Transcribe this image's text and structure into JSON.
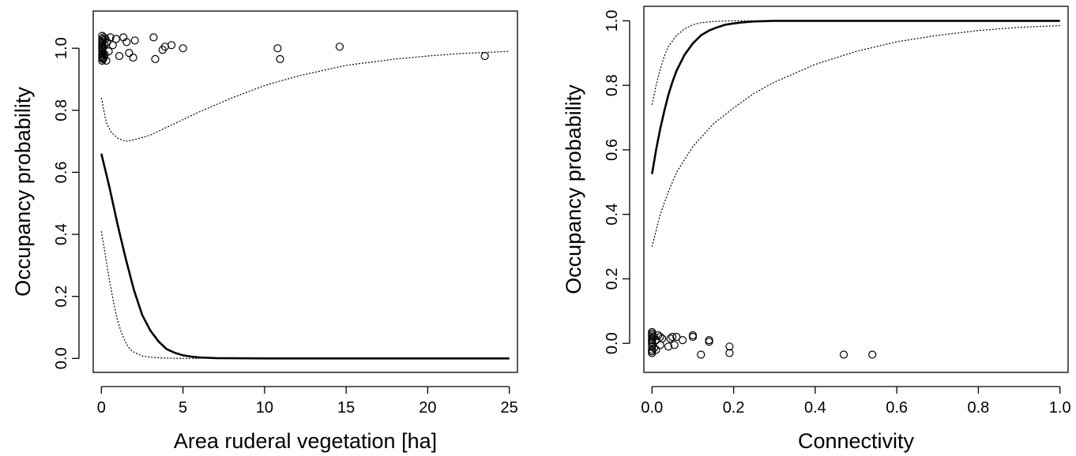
{
  "chart_data": [
    {
      "type": "scatter",
      "xlabel": "Area ruderal vegetation [ha]",
      "ylabel": "Occupancy probability",
      "xlim": [
        -0.5,
        25.5
      ],
      "ylim": [
        -0.045,
        1.12
      ],
      "x_ticks": [
        0,
        5,
        10,
        15,
        20,
        25
      ],
      "y_ticks": [
        0.0,
        0.2,
        0.4,
        0.6,
        0.8,
        1.0
      ],
      "x_tick_labels": [
        "0",
        "5",
        "10",
        "15",
        "20",
        "25"
      ],
      "y_tick_labels": [
        "0.0",
        "0.2",
        "0.4",
        "0.6",
        "0.8",
        "1.0"
      ],
      "grid": false,
      "series": [
        {
          "style": "solid",
          "x": [
            0,
            0.5,
            1,
            1.5,
            2,
            2.5,
            3,
            3.5,
            4,
            4.5,
            5,
            5.5,
            6,
            6.5,
            7,
            10,
            15,
            20,
            25
          ],
          "y": [
            0.66,
            0.55,
            0.43,
            0.32,
            0.22,
            0.14,
            0.09,
            0.055,
            0.03,
            0.018,
            0.01,
            0.006,
            0.003,
            0.002,
            0.001,
            0.0,
            0.0,
            0.0,
            0.0
          ]
        },
        {
          "style": "dotted",
          "x": [
            0,
            0.25,
            0.5,
            0.75,
            1,
            1.25,
            1.5,
            1.75,
            2,
            2.5,
            3,
            3.5,
            4,
            5,
            6
          ],
          "y": [
            0.41,
            0.33,
            0.25,
            0.18,
            0.12,
            0.08,
            0.05,
            0.03,
            0.02,
            0.008,
            0.004,
            0.002,
            0.001,
            0.0,
            0.0
          ]
        },
        {
          "style": "dotted",
          "x": [
            0,
            0.3,
            0.6,
            1,
            1.5,
            2,
            3,
            4,
            5,
            6,
            8,
            10,
            12,
            15,
            18,
            20,
            22,
            25
          ],
          "y": [
            0.84,
            0.76,
            0.73,
            0.71,
            0.7,
            0.705,
            0.72,
            0.745,
            0.77,
            0.795,
            0.84,
            0.88,
            0.91,
            0.945,
            0.965,
            0.975,
            0.983,
            0.99
          ]
        }
      ],
      "points": {
        "x": [
          0.05,
          0.05,
          0.05,
          0.05,
          0.05,
          0.05,
          0.05,
          0.05,
          0.05,
          0.05,
          0.05,
          0.05,
          0.05,
          0.1,
          0.1,
          0.1,
          0.1,
          0.15,
          0.15,
          0.2,
          0.2,
          0.25,
          0.3,
          0.35,
          0.45,
          0.55,
          0.7,
          0.9,
          1.1,
          1.35,
          1.55,
          1.7,
          1.95,
          2.05,
          3.2,
          3.3,
          3.75,
          3.9,
          4.3,
          5.0,
          10.8,
          10.95,
          14.6,
          23.5
        ],
        "y": [
          0.96,
          0.97,
          0.98,
          0.99,
          1.0,
          1.01,
          1.02,
          1.03,
          1.04,
          1.0,
          0.975,
          0.995,
          1.015,
          0.965,
          0.985,
          1.005,
          1.025,
          0.97,
          1.035,
          0.98,
          1.01,
          1.03,
          0.96,
          1.02,
          0.99,
          1.035,
          1.01,
          1.03,
          0.975,
          1.035,
          1.02,
          0.985,
          0.97,
          1.025,
          1.035,
          0.965,
          0.995,
          1.005,
          1.01,
          1.0,
          1.0,
          0.965,
          1.005,
          0.975
        ]
      }
    },
    {
      "type": "scatter",
      "xlabel": "Connectivity",
      "ylabel": "Occupancy probability",
      "xlim": [
        -0.02,
        1.02
      ],
      "ylim": [
        -0.09,
        1.045
      ],
      "x_ticks": [
        0.0,
        0.2,
        0.4,
        0.6,
        0.8,
        1.0
      ],
      "y_ticks": [
        0.0,
        0.2,
        0.4,
        0.6,
        0.8,
        1.0
      ],
      "x_tick_labels": [
        "0.0",
        "0.2",
        "0.4",
        "0.6",
        "0.8",
        "1.0"
      ],
      "y_tick_labels": [
        "0.0",
        "0.2",
        "0.4",
        "0.6",
        "0.8",
        "1.0"
      ],
      "grid": false,
      "series": [
        {
          "style": "solid",
          "x": [
            0,
            0.01,
            0.02,
            0.03,
            0.04,
            0.05,
            0.06,
            0.08,
            0.1,
            0.12,
            0.14,
            0.16,
            0.18,
            0.2,
            0.22,
            0.25,
            0.3,
            0.4,
            0.6,
            0.8,
            1.0
          ],
          "y": [
            0.525,
            0.6,
            0.665,
            0.72,
            0.77,
            0.81,
            0.845,
            0.895,
            0.93,
            0.955,
            0.97,
            0.98,
            0.988,
            0.992,
            0.995,
            0.998,
            1.0,
            1.0,
            1.0,
            1.0,
            1.0
          ]
        },
        {
          "style": "dotted",
          "x": [
            0,
            0.01,
            0.02,
            0.03,
            0.04,
            0.06,
            0.08,
            0.1,
            0.12,
            0.15,
            0.2,
            0.25
          ],
          "y": [
            0.74,
            0.8,
            0.85,
            0.89,
            0.92,
            0.955,
            0.975,
            0.988,
            0.994,
            0.998,
            1.0,
            1.0
          ]
        },
        {
          "style": "dotted",
          "x": [
            0,
            0.02,
            0.04,
            0.06,
            0.08,
            0.1,
            0.15,
            0.2,
            0.25,
            0.3,
            0.4,
            0.5,
            0.6,
            0.7,
            0.8,
            0.9,
            1.0
          ],
          "y": [
            0.3,
            0.4,
            0.47,
            0.53,
            0.57,
            0.61,
            0.68,
            0.73,
            0.775,
            0.81,
            0.865,
            0.905,
            0.935,
            0.955,
            0.97,
            0.98,
            0.985
          ]
        }
      ],
      "points": {
        "x": [
          0.0,
          0.0,
          0.0,
          0.0,
          0.0,
          0.0,
          0.0,
          0.0,
          0.0,
          0.0,
          0.0,
          0.0,
          0.005,
          0.005,
          0.01,
          0.01,
          0.015,
          0.02,
          0.02,
          0.025,
          0.04,
          0.045,
          0.05,
          0.055,
          0.06,
          0.075,
          0.1,
          0.1,
          0.12,
          0.14,
          0.14,
          0.19,
          0.19,
          0.47,
          0.54
        ],
        "y": [
          -0.03,
          -0.02,
          -0.01,
          0.0,
          0.01,
          0.02,
          0.03,
          -0.025,
          0.005,
          0.015,
          0.025,
          0.035,
          -0.015,
          0.02,
          -0.02,
          0.01,
          0.025,
          -0.005,
          0.02,
          0.015,
          -0.01,
          0.015,
          0.02,
          -0.005,
          0.02,
          0.01,
          0.025,
          0.02,
          -0.035,
          0.005,
          0.01,
          -0.01,
          -0.03,
          -0.035,
          -0.035
        ]
      }
    }
  ]
}
